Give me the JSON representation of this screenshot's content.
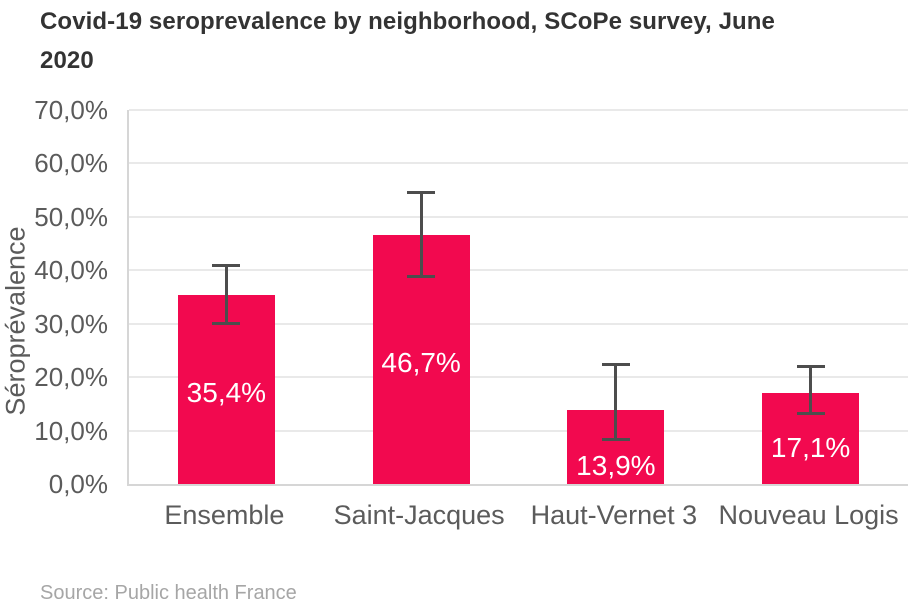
{
  "chart_data": {
    "type": "bar",
    "title": "Covid-19 seroprevalence by neighborhood, SCoPe survey, June 2020",
    "ylabel": "Séroprévalence",
    "xlabel": "",
    "categories": [
      "Ensemble",
      "Saint-Jacques",
      "Haut-Vernet 3",
      "Nouveau Logis"
    ],
    "values": [
      35.4,
      46.7,
      13.9,
      17.1
    ],
    "value_labels": [
      "35,4%",
      "46,7%",
      "13,9%",
      "17,1%"
    ],
    "error_low": [
      30.2,
      38.9,
      8.5,
      13.2
    ],
    "error_high": [
      41.0,
      54.6,
      22.5,
      22.0
    ],
    "ylim": [
      0,
      70
    ],
    "yticks": [
      0,
      10,
      20,
      30,
      40,
      50,
      60,
      70
    ],
    "ytick_labels": [
      "0,0%",
      "10,0%",
      "20,0%",
      "30,0%",
      "40,0%",
      "50,0%",
      "60,0%",
      "70,0%"
    ],
    "grid": true,
    "legend_position": "none",
    "source": "Source: Public health France",
    "colors": {
      "bar": "#f2094f",
      "error_bar": "#4d4d4d",
      "title_text": "#333333",
      "axis_text": "#5b5b5b",
      "value_label_text": "#ffffff",
      "gridline": "#e9e9e9",
      "axis_line": "#d6d6d6",
      "source_text": "#a6a6a6",
      "background": "#ffffff"
    }
  }
}
